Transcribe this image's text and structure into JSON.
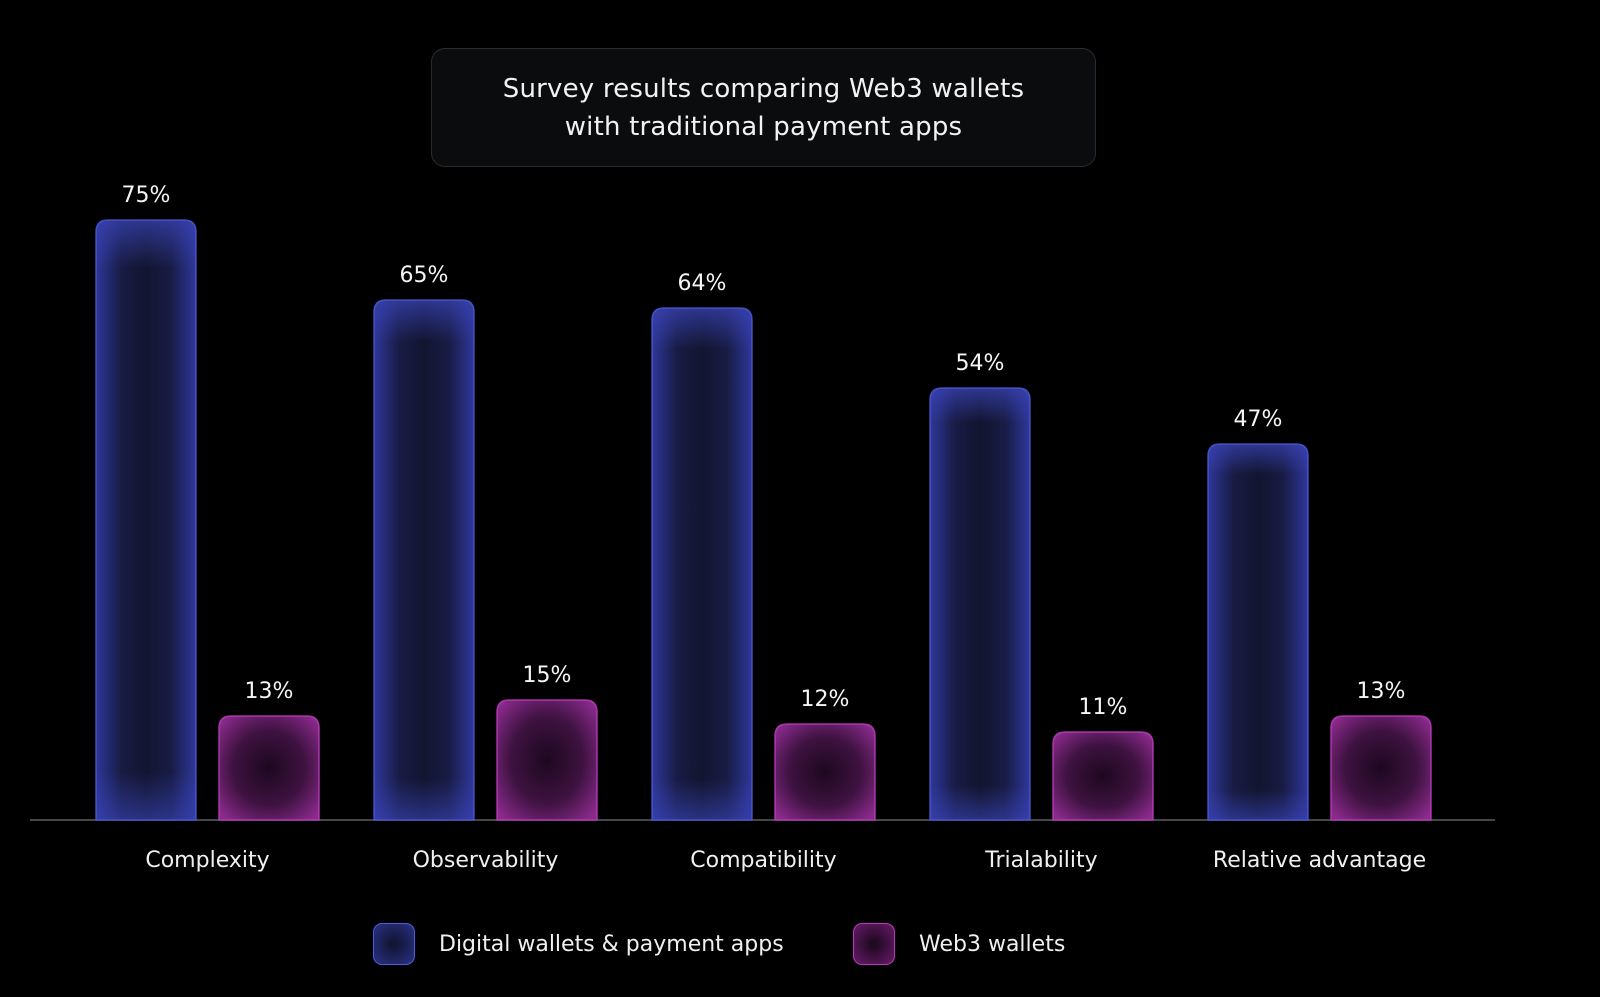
{
  "title": {
    "line1": "Survey results comparing Web3 wallets",
    "line2": "with traditional payment apps"
  },
  "legend": {
    "series_a": "Digital wallets & payment apps",
    "series_b": "Web3 wallets"
  },
  "colors": {
    "series_a_edge": "#4f5bd6",
    "series_a_fill": "#2a318a",
    "series_b_edge": "#c040c2",
    "series_b_fill": "#6a1a6b",
    "background": "#000000"
  },
  "chart_data": {
    "type": "bar",
    "title": "Survey results comparing Web3 wallets with traditional payment apps",
    "xlabel": "",
    "ylabel": "",
    "ylim": [
      0,
      75
    ],
    "grid": false,
    "legend_position": "bottom",
    "categories": [
      "Complexity",
      "Observability",
      "Compatibility",
      "Trialability",
      "Relative advantage"
    ],
    "series": [
      {
        "name": "Digital wallets & payment apps",
        "values": [
          75,
          65,
          64,
          54,
          47
        ],
        "labels": [
          "75%",
          "65%",
          "64%",
          "54%",
          "47%"
        ]
      },
      {
        "name": "Web3 wallets",
        "values": [
          13,
          15,
          12,
          11,
          13
        ],
        "labels": [
          "13%",
          "15%",
          "12%",
          "11%",
          "13%"
        ]
      }
    ]
  }
}
